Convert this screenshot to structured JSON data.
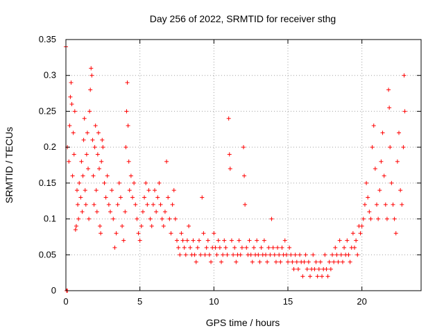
{
  "chart_data": {
    "type": "scatter",
    "title": "Day 256 of 2022, SRMTID for receiver sthg",
    "xlabel": "GPS time / hours",
    "ylabel": "SRMTID / TECUs",
    "xlim": [
      0,
      24
    ],
    "ylim": [
      0,
      0.35
    ],
    "x_ticks": [
      0,
      5,
      10,
      15,
      20
    ],
    "x_tick_labels": [
      "0",
      "5",
      "10",
      "15",
      "20"
    ],
    "y_ticks": [
      0,
      0.05,
      0.1,
      0.15,
      0.2,
      0.25,
      0.3,
      0.35
    ],
    "y_tick_labels": [
      "0",
      "0.05",
      "0.1",
      "0.15",
      "0.2",
      "0.25",
      "0.3",
      "0.35"
    ],
    "grid": true,
    "marker": "+",
    "color": "#ff0000",
    "series": [
      {
        "name": "SRMTID",
        "points": [
          [
            0.0,
            0.34
          ],
          [
            0.05,
            0.0
          ],
          [
            0.1,
            0.0
          ],
          [
            0.1,
            0.2
          ],
          [
            0.2,
            0.18
          ],
          [
            0.25,
            0.23
          ],
          [
            0.3,
            0.27
          ],
          [
            0.35,
            0.29
          ],
          [
            0.4,
            0.26
          ],
          [
            0.45,
            0.16
          ],
          [
            0.5,
            0.22
          ],
          [
            0.55,
            0.19
          ],
          [
            0.6,
            0.25
          ],
          [
            0.65,
            0.085
          ],
          [
            0.7,
            0.09
          ],
          [
            0.75,
            0.14
          ],
          [
            0.8,
            0.12
          ],
          [
            0.85,
            0.1
          ],
          [
            0.9,
            0.15
          ],
          [
            1.0,
            0.13
          ],
          [
            1.05,
            0.18
          ],
          [
            1.1,
            0.11
          ],
          [
            1.15,
            0.16
          ],
          [
            1.2,
            0.21
          ],
          [
            1.25,
            0.24
          ],
          [
            1.3,
            0.14
          ],
          [
            1.35,
            0.12
          ],
          [
            1.4,
            0.19
          ],
          [
            1.45,
            0.22
          ],
          [
            1.5,
            0.17
          ],
          [
            1.55,
            0.1
          ],
          [
            1.6,
            0.25
          ],
          [
            1.65,
            0.28
          ],
          [
            1.7,
            0.31
          ],
          [
            1.75,
            0.3
          ],
          [
            1.8,
            0.21
          ],
          [
            1.85,
            0.16
          ],
          [
            1.9,
            0.12
          ],
          [
            1.95,
            0.2
          ],
          [
            2.0,
            0.23
          ],
          [
            2.05,
            0.14
          ],
          [
            2.1,
            0.11
          ],
          [
            2.15,
            0.19
          ],
          [
            2.2,
            0.22
          ],
          [
            2.25,
            0.17
          ],
          [
            2.3,
            0.09
          ],
          [
            2.35,
            0.08
          ],
          [
            2.4,
            0.18
          ],
          [
            2.45,
            0.21
          ],
          [
            2.5,
            0.2
          ],
          [
            2.6,
            0.15
          ],
          [
            2.7,
            0.13
          ],
          [
            2.8,
            0.16
          ],
          [
            2.9,
            0.12
          ],
          [
            3.0,
            0.11
          ],
          [
            3.1,
            0.14
          ],
          [
            3.2,
            0.1
          ],
          [
            3.3,
            0.06
          ],
          [
            3.4,
            0.08
          ],
          [
            3.5,
            0.12
          ],
          [
            3.6,
            0.15
          ],
          [
            3.7,
            0.13
          ],
          [
            3.8,
            0.09
          ],
          [
            3.9,
            0.07
          ],
          [
            4.0,
            0.11
          ],
          [
            4.05,
            0.2
          ],
          [
            4.1,
            0.25
          ],
          [
            4.15,
            0.29
          ],
          [
            4.2,
            0.23
          ],
          [
            4.25,
            0.18
          ],
          [
            4.3,
            0.14
          ],
          [
            4.4,
            0.16
          ],
          [
            4.5,
            0.13
          ],
          [
            4.6,
            0.15
          ],
          [
            4.7,
            0.12
          ],
          [
            4.8,
            0.1
          ],
          [
            4.9,
            0.08
          ],
          [
            5.0,
            0.07
          ],
          [
            5.1,
            0.09
          ],
          [
            5.2,
            0.11
          ],
          [
            5.3,
            0.13
          ],
          [
            5.4,
            0.15
          ],
          [
            5.5,
            0.12
          ],
          [
            5.6,
            0.14
          ],
          [
            5.7,
            0.1
          ],
          [
            5.8,
            0.09
          ],
          [
            5.9,
            0.12
          ],
          [
            6.0,
            0.14
          ],
          [
            6.1,
            0.11
          ],
          [
            6.2,
            0.13
          ],
          [
            6.3,
            0.15
          ],
          [
            6.4,
            0.12
          ],
          [
            6.5,
            0.1
          ],
          [
            6.6,
            0.09
          ],
          [
            6.7,
            0.11
          ],
          [
            6.8,
            0.18
          ],
          [
            6.9,
            0.13
          ],
          [
            7.0,
            0.1
          ],
          [
            7.1,
            0.08
          ],
          [
            7.2,
            0.12
          ],
          [
            7.3,
            0.14
          ],
          [
            7.4,
            0.1
          ],
          [
            7.5,
            0.07
          ],
          [
            7.6,
            0.06
          ],
          [
            7.7,
            0.05
          ],
          [
            7.8,
            0.08
          ],
          [
            7.9,
            0.07
          ],
          [
            8.0,
            0.06
          ],
          [
            8.1,
            0.05
          ],
          [
            8.2,
            0.07
          ],
          [
            8.3,
            0.09
          ],
          [
            8.4,
            0.06
          ],
          [
            8.5,
            0.05
          ],
          [
            8.6,
            0.07
          ],
          [
            8.7,
            0.05
          ],
          [
            8.8,
            0.04
          ],
          [
            8.9,
            0.06
          ],
          [
            9.0,
            0.07
          ],
          [
            9.1,
            0.05
          ],
          [
            9.2,
            0.13
          ],
          [
            9.3,
            0.08
          ],
          [
            9.4,
            0.05
          ],
          [
            9.5,
            0.06
          ],
          [
            9.6,
            0.07
          ],
          [
            9.7,
            0.05
          ],
          [
            9.8,
            0.04
          ],
          [
            9.9,
            0.06
          ],
          [
            10.0,
            0.08
          ],
          [
            10.1,
            0.06
          ],
          [
            10.2,
            0.05
          ],
          [
            10.3,
            0.07
          ],
          [
            10.4,
            0.06
          ],
          [
            10.5,
            0.04
          ],
          [
            10.6,
            0.05
          ],
          [
            10.7,
            0.07
          ],
          [
            10.8,
            0.06
          ],
          [
            10.9,
            0.05
          ],
          [
            11.0,
            0.24
          ],
          [
            11.05,
            0.19
          ],
          [
            11.1,
            0.17
          ],
          [
            11.2,
            0.07
          ],
          [
            11.3,
            0.05
          ],
          [
            11.4,
            0.06
          ],
          [
            11.5,
            0.04
          ],
          [
            11.6,
            0.05
          ],
          [
            11.7,
            0.07
          ],
          [
            11.8,
            0.05
          ],
          [
            11.9,
            0.06
          ],
          [
            12.0,
            0.2
          ],
          [
            12.05,
            0.16
          ],
          [
            12.1,
            0.12
          ],
          [
            12.2,
            0.06
          ],
          [
            12.3,
            0.05
          ],
          [
            12.4,
            0.07
          ],
          [
            12.5,
            0.05
          ],
          [
            12.6,
            0.04
          ],
          [
            12.7,
            0.06
          ],
          [
            12.8,
            0.05
          ],
          [
            12.9,
            0.07
          ],
          [
            13.0,
            0.05
          ],
          [
            13.1,
            0.04
          ],
          [
            13.2,
            0.06
          ],
          [
            13.3,
            0.05
          ],
          [
            13.4,
            0.07
          ],
          [
            13.5,
            0.05
          ],
          [
            13.6,
            0.04
          ],
          [
            13.7,
            0.06
          ],
          [
            13.8,
            0.05
          ],
          [
            13.9,
            0.1
          ],
          [
            14.0,
            0.06
          ],
          [
            14.1,
            0.05
          ],
          [
            14.2,
            0.04
          ],
          [
            14.3,
            0.06
          ],
          [
            14.4,
            0.05
          ],
          [
            14.5,
            0.04
          ],
          [
            14.6,
            0.06
          ],
          [
            14.7,
            0.05
          ],
          [
            14.8,
            0.07
          ],
          [
            14.9,
            0.05
          ],
          [
            15.0,
            0.04
          ],
          [
            15.1,
            0.06
          ],
          [
            15.2,
            0.05
          ],
          [
            15.3,
            0.04
          ],
          [
            15.4,
            0.03
          ],
          [
            15.5,
            0.05
          ],
          [
            15.6,
            0.04
          ],
          [
            15.7,
            0.03
          ],
          [
            15.8,
            0.05
          ],
          [
            15.9,
            0.04
          ],
          [
            16.0,
            0.02
          ],
          [
            16.1,
            0.04
          ],
          [
            16.2,
            0.05
          ],
          [
            16.3,
            0.03
          ],
          [
            16.4,
            0.04
          ],
          [
            16.5,
            0.02
          ],
          [
            16.6,
            0.03
          ],
          [
            16.7,
            0.05
          ],
          [
            16.8,
            0.03
          ],
          [
            16.9,
            0.04
          ],
          [
            17.0,
            0.02
          ],
          [
            17.1,
            0.03
          ],
          [
            17.2,
            0.04
          ],
          [
            17.3,
            0.02
          ],
          [
            17.4,
            0.03
          ],
          [
            17.5,
            0.05
          ],
          [
            17.6,
            0.03
          ],
          [
            17.7,
            0.02
          ],
          [
            17.8,
            0.04
          ],
          [
            17.9,
            0.03
          ],
          [
            18.0,
            0.05
          ],
          [
            18.1,
            0.04
          ],
          [
            18.2,
            0.06
          ],
          [
            18.3,
            0.05
          ],
          [
            18.4,
            0.04
          ],
          [
            18.5,
            0.07
          ],
          [
            18.6,
            0.05
          ],
          [
            18.7,
            0.04
          ],
          [
            18.8,
            0.06
          ],
          [
            18.9,
            0.05
          ],
          [
            19.0,
            0.07
          ],
          [
            19.1,
            0.05
          ],
          [
            19.2,
            0.04
          ],
          [
            19.3,
            0.06
          ],
          [
            19.4,
            0.08
          ],
          [
            19.5,
            0.06
          ],
          [
            19.6,
            0.07
          ],
          [
            19.7,
            0.05
          ],
          [
            19.8,
            0.09
          ],
          [
            19.9,
            0.08
          ],
          [
            20.0,
            0.09
          ],
          [
            20.1,
            0.1
          ],
          [
            20.2,
            0.12
          ],
          [
            20.3,
            0.15
          ],
          [
            20.4,
            0.13
          ],
          [
            20.5,
            0.11
          ],
          [
            20.6,
            0.1
          ],
          [
            20.7,
            0.2
          ],
          [
            20.8,
            0.23
          ],
          [
            20.9,
            0.17
          ],
          [
            21.0,
            0.12
          ],
          [
            21.1,
            0.1
          ],
          [
            21.2,
            0.14
          ],
          [
            21.3,
            0.18
          ],
          [
            21.4,
            0.22
          ],
          [
            21.5,
            0.16
          ],
          [
            21.6,
            0.12
          ],
          [
            21.7,
            0.1
          ],
          [
            21.8,
            0.28
          ],
          [
            21.85,
            0.255
          ],
          [
            21.9,
            0.2
          ],
          [
            22.0,
            0.15
          ],
          [
            22.1,
            0.12
          ],
          [
            22.2,
            0.1
          ],
          [
            22.3,
            0.08
          ],
          [
            22.4,
            0.18
          ],
          [
            22.5,
            0.22
          ],
          [
            22.6,
            0.14
          ],
          [
            22.7,
            0.12
          ],
          [
            22.8,
            0.2
          ],
          [
            22.85,
            0.3
          ],
          [
            22.9,
            0.25
          ]
        ]
      }
    ]
  }
}
